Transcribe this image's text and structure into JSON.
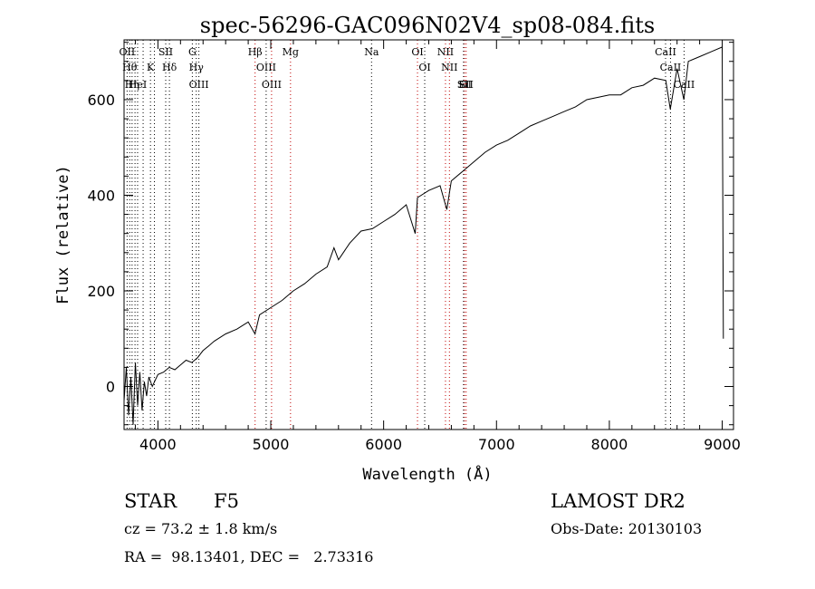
{
  "chart_data": {
    "type": "line",
    "title": "spec-56296-GAC096N02V4_sp08-084.fits",
    "xlabel": "Wavelength (Å)",
    "ylabel": "Flux (relative)",
    "xlim": [
      3700,
      9100
    ],
    "ylim": [
      -90,
      725
    ],
    "xticks": [
      4000,
      5000,
      6000,
      7000,
      8000,
      9000
    ],
    "yticks": [
      0,
      200,
      400,
      600
    ],
    "series": [
      {
        "name": "flux",
        "x": [
          3700,
          3720,
          3740,
          3760,
          3780,
          3800,
          3820,
          3840,
          3860,
          3880,
          3900,
          3920,
          3950,
          3980,
          4000,
          4050,
          4100,
          4150,
          4200,
          4250,
          4300,
          4350,
          4400,
          4450,
          4500,
          4600,
          4700,
          4800,
          4860,
          4900,
          5000,
          5100,
          5200,
          5300,
          5400,
          5500,
          5560,
          5600,
          5700,
          5800,
          5900,
          6000,
          6100,
          6200,
          6280,
          6300,
          6400,
          6500,
          6560,
          6600,
          6700,
          6800,
          6900,
          7000,
          7100,
          7200,
          7300,
          7400,
          7500,
          7600,
          7700,
          7800,
          8000,
          8100,
          8200,
          8300,
          8400,
          8500,
          8540,
          8600,
          8660,
          8700,
          8800,
          8900,
          9000,
          9010
        ],
        "values": [
          -30,
          40,
          -60,
          20,
          -80,
          50,
          -40,
          30,
          -50,
          10,
          -20,
          20,
          0,
          15,
          25,
          30,
          40,
          35,
          45,
          55,
          50,
          60,
          75,
          85,
          95,
          110,
          120,
          135,
          110,
          150,
          165,
          180,
          200,
          215,
          235,
          250,
          290,
          265,
          300,
          325,
          330,
          345,
          360,
          380,
          320,
          395,
          410,
          420,
          370,
          430,
          450,
          470,
          490,
          505,
          515,
          530,
          545,
          555,
          565,
          575,
          585,
          600,
          610,
          610,
          625,
          630,
          645,
          640,
          580,
          665,
          600,
          680,
          690,
          700,
          710,
          100
        ]
      }
    ],
    "line_marks": [
      {
        "wavelength": 3727,
        "labels": [
          "OII"
        ],
        "color": "black"
      },
      {
        "wavelength": 3750,
        "labels": [
          "Hθ"
        ],
        "color": "black"
      },
      {
        "wavelength": 3771,
        "labels": [
          "Hη"
        ],
        "color": "black"
      },
      {
        "wavelength": 3797,
        "labels": [],
        "color": "black"
      },
      {
        "wavelength": 3820,
        "labels": [
          "HeI"
        ],
        "color": "black"
      },
      {
        "wavelength": 3869,
        "labels": [],
        "color": "black"
      },
      {
        "wavelength": 3934,
        "labels": [
          "K"
        ],
        "color": "black"
      },
      {
        "wavelength": 3969,
        "labels": [],
        "color": "black"
      },
      {
        "wavelength": 4069,
        "labels": [
          "SII"
        ],
        "color": "black"
      },
      {
        "wavelength": 4102,
        "labels": [
          "Hδ"
        ],
        "color": "black"
      },
      {
        "wavelength": 4305,
        "labels": [
          "G"
        ],
        "color": "black"
      },
      {
        "wavelength": 4340,
        "labels": [
          "Hγ"
        ],
        "color": "black"
      },
      {
        "wavelength": 4363,
        "labels": [
          "OIII"
        ],
        "color": "black"
      },
      {
        "wavelength": 4861,
        "labels": [
          "Hβ"
        ],
        "color": "red"
      },
      {
        "wavelength": 4959,
        "labels": [
          "OIII"
        ],
        "color": "black"
      },
      {
        "wavelength": 5007,
        "labels": [
          "OIII"
        ],
        "color": "red"
      },
      {
        "wavelength": 5175,
        "labels": [
          "Mg"
        ],
        "color": "red"
      },
      {
        "wavelength": 5893,
        "labels": [
          "Na"
        ],
        "color": "black"
      },
      {
        "wavelength": 6300,
        "labels": [
          "OI"
        ],
        "color": "red"
      },
      {
        "wavelength": 6364,
        "labels": [
          "OI"
        ],
        "color": "black"
      },
      {
        "wavelength": 6548,
        "labels": [
          "NII"
        ],
        "color": "red"
      },
      {
        "wavelength": 6583,
        "labels": [
          "NII"
        ],
        "color": "red"
      },
      {
        "wavelength": 6708,
        "labels": [
          "Li"
        ],
        "color": "black"
      },
      {
        "wavelength": 6716,
        "labels": [
          "SII"
        ],
        "color": "red"
      },
      {
        "wavelength": 6731,
        "labels": [
          "SII"
        ],
        "color": "red"
      },
      {
        "wavelength": 8498,
        "labels": [
          "CaII"
        ],
        "color": "black"
      },
      {
        "wavelength": 8542,
        "labels": [
          "CaII"
        ],
        "color": "black"
      },
      {
        "wavelength": 8662,
        "labels": [
          "CaII"
        ],
        "color": "black"
      }
    ]
  },
  "info": {
    "class_label": "STAR",
    "subclass": "F5",
    "survey": "LAMOST DR2",
    "cz": "cz = 73.2 ± 1.8 km/s",
    "obs_date": "Obs-Date: 20130103",
    "coords": "RA =  98.13401, DEC =   2.73316"
  }
}
